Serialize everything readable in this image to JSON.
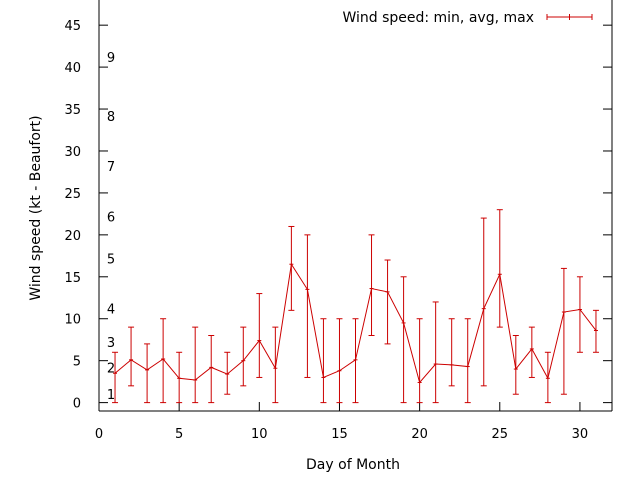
{
  "chart_data": {
    "type": "line",
    "xlabel": "Day of Month",
    "ylabel": "Wind speed (kt - Beaufort)",
    "xlim": [
      0,
      32
    ],
    "ylim": [
      -1,
      48
    ],
    "x_ticks": [
      0,
      5,
      10,
      15,
      20,
      25,
      30
    ],
    "y_ticks": [
      0,
      5,
      10,
      15,
      20,
      25,
      30,
      35,
      40,
      45
    ],
    "grid": false,
    "legend_position": "top-right",
    "beaufort_labels": [
      {
        "label": "1",
        "value": 1
      },
      {
        "label": "2",
        "value": 4.2
      },
      {
        "label": "3",
        "value": 7.2
      },
      {
        "label": "4",
        "value": 11.2
      },
      {
        "label": "5",
        "value": 17.2
      },
      {
        "label": "6",
        "value": 22.2
      },
      {
        "label": "7",
        "value": 28.2
      },
      {
        "label": "8",
        "value": 34.2
      },
      {
        "label": "9",
        "value": 41.2
      }
    ],
    "series": [
      {
        "name": "Wind speed: min, avg, max",
        "color": "#cc0000",
        "x": [
          1,
          2,
          3,
          4,
          5,
          6,
          7,
          8,
          9,
          10,
          11,
          12,
          13,
          14,
          15,
          16,
          17,
          18,
          19,
          20,
          21,
          22,
          23,
          24,
          25,
          26,
          27,
          28,
          29,
          30,
          31
        ],
        "avg": [
          3.5,
          5.1,
          3.9,
          5.2,
          2.9,
          2.7,
          4.2,
          3.4,
          5.0,
          7.4,
          4.1,
          16.5,
          13.5,
          3.0,
          3.8,
          5.1,
          13.6,
          13.2,
          9.5,
          2.4,
          4.6,
          4.5,
          4.3,
          11.2,
          15.3,
          4.0,
          6.4,
          2.9,
          10.8,
          11.1,
          8.6
        ],
        "min": [
          0,
          2,
          0,
          0,
          0,
          0,
          0,
          1,
          2,
          3,
          0,
          11,
          3,
          0,
          0,
          0,
          8,
          7,
          0,
          0,
          0,
          2,
          0,
          2,
          9,
          1,
          3,
          0,
          1,
          6,
          6
        ],
        "max": [
          6,
          9,
          7,
          10,
          6,
          9,
          8,
          6,
          9,
          13,
          9,
          21,
          20,
          10,
          10,
          10,
          20,
          17,
          15,
          10,
          12,
          10,
          10,
          22,
          23,
          8,
          9,
          6,
          16,
          15,
          11
        ]
      }
    ]
  }
}
